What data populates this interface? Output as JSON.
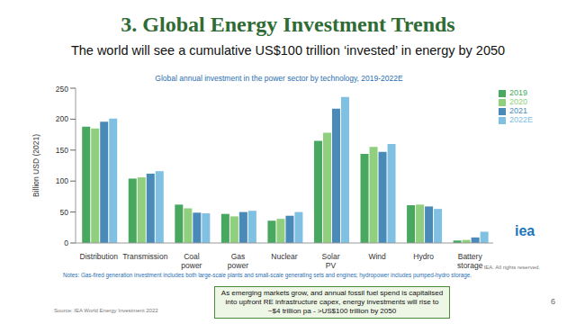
{
  "slide": {
    "title": "3. Global Energy Investment Trends",
    "subtitle": "The world will see a cumulative US$100 trillion ‘invested’ in energy by 2050",
    "note": "Notes: Gas-fired generation investment includes both large-scale plants and small-scale generating sets and engines; hydropower includes pumped-hydro storage.",
    "rights": "IEA. All rights reserved.",
    "logo": "iea",
    "source": "Source: IEA World Energy Investment 2022",
    "callout": "As emerging markets grow, and annual fossil fuel spend is capitalised into upfront RE infrastructure capex, energy investments will rise to ~$4 trillion pa - >US$100 trillion by 2050",
    "page": "6"
  },
  "chart_data": {
    "type": "bar",
    "title": "Global annual investment in the power sector by technology, 2019-2022E",
    "y_label": "Billion USD (2021)",
    "categories": [
      "Distribution",
      "Transmission",
      "Coal power",
      "Gas power",
      "Nuclear",
      "Solar PV",
      "Wind",
      "Hydro",
      "Battery storage"
    ],
    "series": [
      {
        "name": "2019",
        "color": "#48a860",
        "values": [
          188,
          104,
          62,
          47,
          36,
          165,
          144,
          61,
          4
        ]
      },
      {
        "name": "2020",
        "color": "#8fcf7d",
        "values": [
          185,
          106,
          56,
          43,
          39,
          178,
          155,
          62,
          5
        ]
      },
      {
        "name": "2021",
        "color": "#4a8ab8",
        "values": [
          196,
          112,
          49,
          50,
          44,
          217,
          147,
          59,
          9
        ]
      },
      {
        "name": "2022E",
        "color": "#80c0e2",
        "values": [
          201,
          116,
          48,
          52,
          50,
          236,
          160,
          55,
          18
        ]
      }
    ],
    "ylim": [
      0,
      250
    ],
    "yticks": [
      0,
      50,
      100,
      150,
      200,
      250
    ],
    "grid": false,
    "legend": "right"
  }
}
